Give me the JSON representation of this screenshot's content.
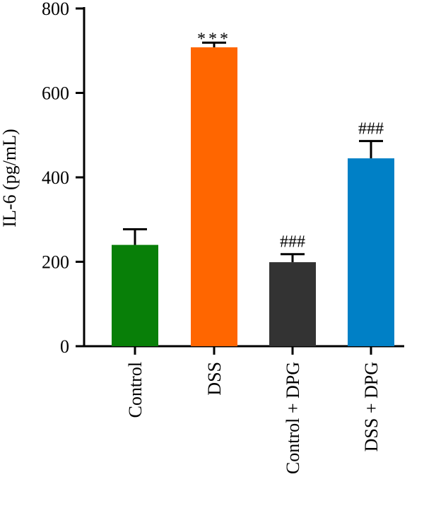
{
  "chart_data": {
    "type": "bar",
    "ylabel": "IL-6 (pg/mL)",
    "xlabel": "",
    "ylim": [
      0,
      800
    ],
    "yticks": [
      0,
      200,
      400,
      600,
      800
    ],
    "categories": [
      "Control",
      "DSS",
      "Control + DPG",
      "DSS + DPG"
    ],
    "values": [
      240,
      708,
      199,
      445
    ],
    "errors": [
      37,
      11,
      19,
      41
    ],
    "annotations": [
      "",
      "***",
      "###",
      "###"
    ],
    "colors": [
      "#087f08",
      "#ff6600",
      "#333333",
      "#0080c6"
    ],
    "grid": false,
    "legend": "none"
  }
}
